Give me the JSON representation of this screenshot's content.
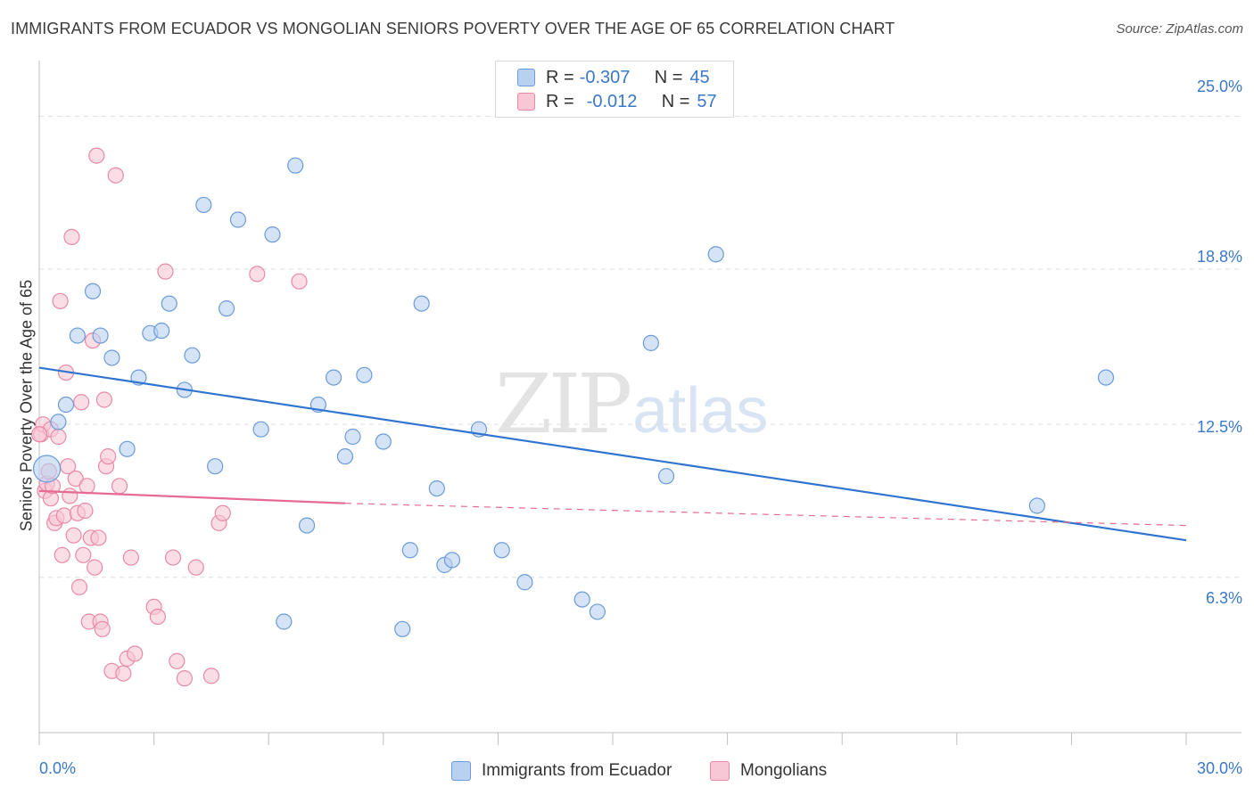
{
  "title": "IMMIGRANTS FROM ECUADOR VS MONGOLIAN SENIORS POVERTY OVER THE AGE OF 65 CORRELATION CHART",
  "source": "Source: ZipAtlas.com",
  "watermark": {
    "zip": "ZIP",
    "atlas": "atlas"
  },
  "legend": {
    "ecuador": {
      "r_label": "R =",
      "r_value": "-0.307",
      "n_label": "N =",
      "n_value": "45"
    },
    "mongolian": {
      "r_label": "R =",
      "r_value": "-0.012",
      "n_label": "N =",
      "n_value": "57"
    }
  },
  "bottom_legend": {
    "ecuador": "Immigrants from Ecuador",
    "mongolian": "Mongolians"
  },
  "colors": {
    "ecuador_fill": "#b9d1f0",
    "ecuador_stroke": "#6b9bd8",
    "ecuador_line": "#2f74d0",
    "mongolian_fill": "#f8c7d6",
    "mongolian_stroke": "#e88aa6",
    "mongolian_line": "#e56b93",
    "tick_text": "#3a78c8",
    "grid": "#dddddd"
  },
  "chart_data": {
    "type": "scatter",
    "title": "IMMIGRANTS FROM ECUADOR VS MONGOLIAN SENIORS POVERTY OVER THE AGE OF 65 CORRELATION CHART",
    "xlabel": "",
    "ylabel": "Seniors Poverty Over the Age of 65",
    "xlim": [
      0,
      30
    ],
    "ylim": [
      0,
      27
    ],
    "x_tick_labels": [
      "0.0%",
      "30.0%"
    ],
    "y_ticks": [
      6.3,
      12.5,
      18.8,
      25.0
    ],
    "y_tick_labels": [
      "6.3%",
      "12.5%",
      "18.8%",
      "25.0%"
    ],
    "grid": "horizontal dashed",
    "series": [
      {
        "name": "Immigrants from Ecuador",
        "points": [
          [
            0.2,
            10.7
          ],
          [
            0.5,
            12.6
          ],
          [
            0.7,
            13.3
          ],
          [
            1.0,
            16.1
          ],
          [
            1.4,
            17.9
          ],
          [
            1.6,
            16.1
          ],
          [
            1.9,
            15.2
          ],
          [
            2.3,
            11.5
          ],
          [
            2.6,
            14.4
          ],
          [
            2.9,
            16.2
          ],
          [
            3.2,
            16.3
          ],
          [
            3.4,
            17.4
          ],
          [
            3.8,
            13.9
          ],
          [
            4.0,
            15.3
          ],
          [
            4.3,
            21.4
          ],
          [
            4.6,
            10.8
          ],
          [
            4.9,
            17.2
          ],
          [
            5.2,
            20.8
          ],
          [
            5.8,
            12.3
          ],
          [
            6.1,
            20.2
          ],
          [
            6.4,
            4.5
          ],
          [
            6.7,
            23.0
          ],
          [
            7.0,
            8.4
          ],
          [
            7.3,
            13.3
          ],
          [
            7.7,
            14.4
          ],
          [
            8.0,
            11.2
          ],
          [
            8.2,
            12.0
          ],
          [
            8.5,
            14.5
          ],
          [
            9.0,
            11.8
          ],
          [
            9.5,
            4.2
          ],
          [
            9.7,
            7.4
          ],
          [
            10.0,
            17.4
          ],
          [
            10.4,
            9.9
          ],
          [
            10.6,
            6.8
          ],
          [
            10.8,
            7.0
          ],
          [
            11.5,
            12.3
          ],
          [
            12.1,
            7.4
          ],
          [
            12.7,
            6.1
          ],
          [
            14.2,
            5.4
          ],
          [
            14.6,
            4.9
          ],
          [
            16.0,
            15.8
          ],
          [
            16.4,
            10.4
          ],
          [
            17.7,
            19.4
          ],
          [
            26.1,
            9.2
          ],
          [
            27.9,
            14.4
          ]
        ]
      },
      {
        "name": "Mongolians",
        "points": [
          [
            0.05,
            12.1
          ],
          [
            0.1,
            12.5
          ],
          [
            0.15,
            9.8
          ],
          [
            0.2,
            10.1
          ],
          [
            0.25,
            10.6
          ],
          [
            0.3,
            12.3
          ],
          [
            0.3,
            9.5
          ],
          [
            0.35,
            10.0
          ],
          [
            0.4,
            8.5
          ],
          [
            0.45,
            8.7
          ],
          [
            0.5,
            12.0
          ],
          [
            0.55,
            17.5
          ],
          [
            0.6,
            7.2
          ],
          [
            0.65,
            8.8
          ],
          [
            0.7,
            14.6
          ],
          [
            0.75,
            10.8
          ],
          [
            0.8,
            9.6
          ],
          [
            0.85,
            20.1
          ],
          [
            0.9,
            8.0
          ],
          [
            0.95,
            10.3
          ],
          [
            1.0,
            8.9
          ],
          [
            1.05,
            5.9
          ],
          [
            1.1,
            13.4
          ],
          [
            1.15,
            7.2
          ],
          [
            1.2,
            9.0
          ],
          [
            1.25,
            10.0
          ],
          [
            1.3,
            4.5
          ],
          [
            1.35,
            7.9
          ],
          [
            1.4,
            15.9
          ],
          [
            1.45,
            6.7
          ],
          [
            1.5,
            23.4
          ],
          [
            1.55,
            7.9
          ],
          [
            1.6,
            4.5
          ],
          [
            1.65,
            4.2
          ],
          [
            1.7,
            13.5
          ],
          [
            1.75,
            10.8
          ],
          [
            1.8,
            11.2
          ],
          [
            1.9,
            2.5
          ],
          [
            2.0,
            22.6
          ],
          [
            2.1,
            10.0
          ],
          [
            2.2,
            2.4
          ],
          [
            2.3,
            3.0
          ],
          [
            2.4,
            7.1
          ],
          [
            2.5,
            3.2
          ],
          [
            3.0,
            5.1
          ],
          [
            3.1,
            4.7
          ],
          [
            3.3,
            18.7
          ],
          [
            3.5,
            7.1
          ],
          [
            3.6,
            2.9
          ],
          [
            3.8,
            2.2
          ],
          [
            4.1,
            6.7
          ],
          [
            4.5,
            2.3
          ],
          [
            4.7,
            8.5
          ],
          [
            4.8,
            8.9
          ],
          [
            5.7,
            18.6
          ],
          [
            6.8,
            18.3
          ],
          [
            0.0,
            12.1
          ]
        ]
      }
    ],
    "trend_lines": [
      {
        "series": "Immigrants from Ecuador",
        "x": [
          0,
          30
        ],
        "y": [
          14.8,
          7.8
        ],
        "style": "solid"
      },
      {
        "series": "Mongolians",
        "x": [
          0,
          8
        ],
        "y": [
          9.8,
          9.3
        ],
        "style": "solid"
      },
      {
        "series": "Mongolians",
        "x": [
          8,
          30
        ],
        "y": [
          9.3,
          8.4
        ],
        "style": "dashed"
      }
    ]
  }
}
